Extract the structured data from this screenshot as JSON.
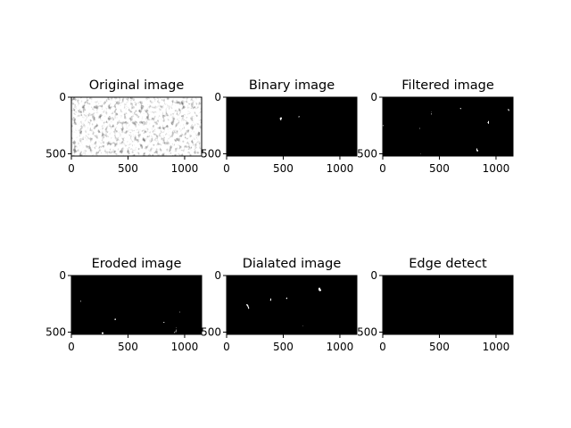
{
  "chart_data": [
    {
      "type": "heatmap",
      "title": "Original image",
      "colormap": "grayscale",
      "style": "texture",
      "xlim": [
        0,
        1150
      ],
      "ylim": [
        520,
        0
      ],
      "xticks": [
        0,
        500,
        1000
      ],
      "yticks": [
        0,
        500
      ]
    },
    {
      "type": "heatmap",
      "title": "Binary image",
      "colormap": "binary",
      "style": "threshold",
      "xlim": [
        0,
        1150
      ],
      "ylim": [
        520,
        0
      ],
      "xticks": [
        0,
        500,
        1000
      ],
      "yticks": [
        0,
        500
      ]
    },
    {
      "type": "heatmap",
      "title": "Filtered image",
      "colormap": "binary",
      "style": "threshold",
      "xlim": [
        0,
        1150
      ],
      "ylim": [
        520,
        0
      ],
      "xticks": [
        0,
        500,
        1000
      ],
      "yticks": [
        0,
        500
      ]
    },
    {
      "type": "heatmap",
      "title": "Eroded image",
      "colormap": "binary",
      "style": "threshold",
      "xlim": [
        0,
        1150
      ],
      "ylim": [
        520,
        0
      ],
      "xticks": [
        0,
        500,
        1000
      ],
      "yticks": [
        0,
        500
      ]
    },
    {
      "type": "heatmap",
      "title": "Dialated image",
      "colormap": "binary",
      "style": "threshold",
      "xlim": [
        0,
        1150
      ],
      "ylim": [
        520,
        0
      ],
      "xticks": [
        0,
        500,
        1000
      ],
      "yticks": [
        0,
        500
      ]
    },
    {
      "type": "heatmap",
      "title": "Edge detect",
      "colormap": "binary",
      "style": "edges",
      "xlim": [
        0,
        1150
      ],
      "ylim": [
        520,
        0
      ],
      "xticks": [
        0,
        500,
        1000
      ],
      "yticks": [
        0,
        500
      ]
    }
  ]
}
